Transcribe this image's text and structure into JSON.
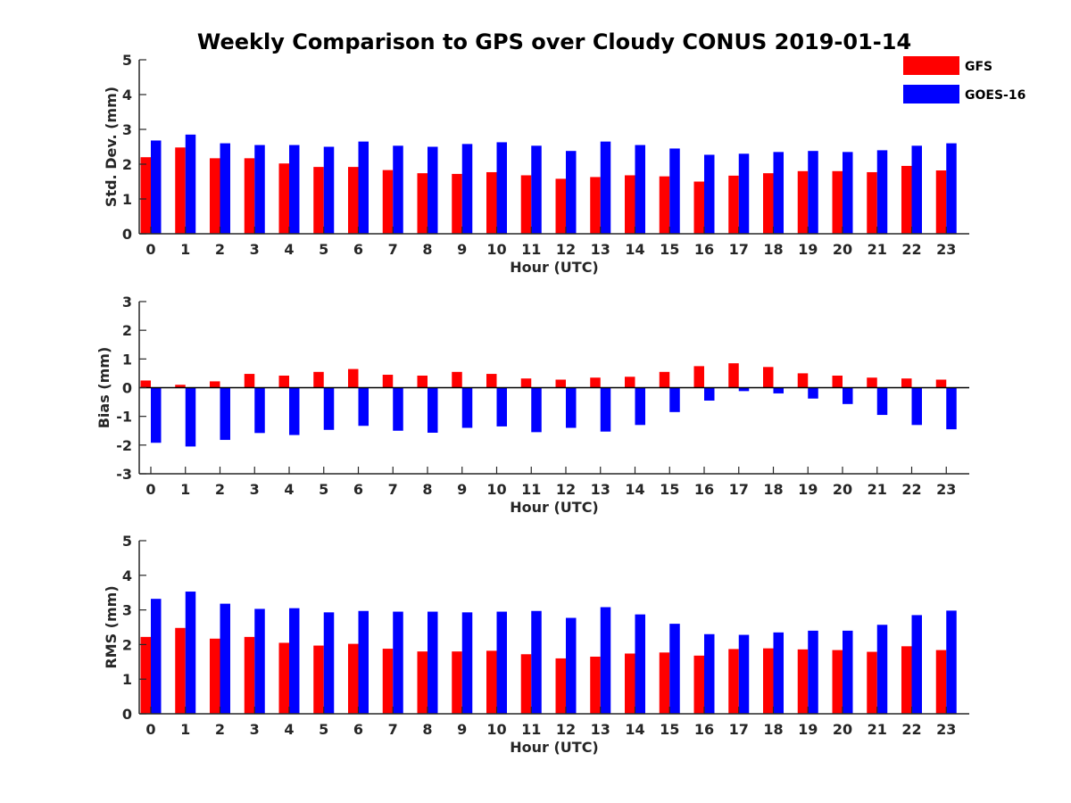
{
  "chart_data": {
    "title": "Weekly Comparison to GPS over Cloudy CONUS 2019-01-14",
    "legend": {
      "placement": "top-right",
      "entries": [
        {
          "name": "GFS",
          "color": "#ff0000"
        },
        {
          "name": "GOES-16",
          "color": "#0000ff"
        }
      ]
    },
    "panels": [
      {
        "type": "bar",
        "ylabel": "Std. Dev. (mm)",
        "xlabel": "Hour (UTC)",
        "ylim": [
          0,
          5
        ],
        "yticks": [
          0,
          1,
          2,
          3,
          4,
          5
        ],
        "categories": [
          "0",
          "1",
          "2",
          "3",
          "4",
          "5",
          "6",
          "7",
          "8",
          "9",
          "10",
          "11",
          "12",
          "13",
          "14",
          "15",
          "16",
          "17",
          "18",
          "19",
          "20",
          "21",
          "22",
          "23"
        ],
        "series": [
          {
            "name": "GFS",
            "color": "#ff0000",
            "values": [
              2.2,
              2.48,
              2.17,
              2.17,
              2.02,
              1.92,
              1.92,
              1.83,
              1.74,
              1.72,
              1.77,
              1.68,
              1.58,
              1.63,
              1.68,
              1.65,
              1.5,
              1.67,
              1.74,
              1.8,
              1.8,
              1.77,
              1.95,
              1.82
            ]
          },
          {
            "name": "GOES-16",
            "color": "#0000ff",
            "values": [
              2.68,
              2.85,
              2.6,
              2.55,
              2.55,
              2.5,
              2.65,
              2.53,
              2.5,
              2.58,
              2.63,
              2.53,
              2.38,
              2.65,
              2.55,
              2.45,
              2.27,
              2.3,
              2.35,
              2.38,
              2.35,
              2.4,
              2.53,
              2.6
            ]
          }
        ]
      },
      {
        "type": "bar",
        "ylabel": "Bias (mm)",
        "xlabel": "Hour (UTC)",
        "ylim": [
          -3,
          3
        ],
        "yticks": [
          -3,
          -2,
          -1,
          0,
          1,
          2,
          3
        ],
        "categories": [
          "0",
          "1",
          "2",
          "3",
          "4",
          "5",
          "6",
          "7",
          "8",
          "9",
          "10",
          "11",
          "12",
          "13",
          "14",
          "15",
          "16",
          "17",
          "18",
          "19",
          "20",
          "21",
          "22",
          "23"
        ],
        "series": [
          {
            "name": "GFS",
            "color": "#ff0000",
            "values": [
              0.25,
              0.1,
              0.22,
              0.48,
              0.42,
              0.55,
              0.65,
              0.45,
              0.42,
              0.55,
              0.48,
              0.32,
              0.28,
              0.35,
              0.38,
              0.55,
              0.75,
              0.85,
              0.72,
              0.5,
              0.42,
              0.35,
              0.32,
              0.28
            ]
          },
          {
            "name": "GOES-16",
            "color": "#0000ff",
            "values": [
              -1.92,
              -2.05,
              -1.82,
              -1.58,
              -1.65,
              -1.47,
              -1.33,
              -1.5,
              -1.57,
              -1.4,
              -1.35,
              -1.55,
              -1.4,
              -1.53,
              -1.3,
              -0.85,
              -0.45,
              -0.12,
              -0.2,
              -0.38,
              -0.57,
              -0.95,
              -1.3,
              -1.45
            ]
          }
        ]
      },
      {
        "type": "bar",
        "ylabel": "RMS (mm)",
        "xlabel": "Hour (UTC)",
        "ylim": [
          0,
          5
        ],
        "yticks": [
          0,
          1,
          2,
          3,
          4,
          5
        ],
        "categories": [
          "0",
          "1",
          "2",
          "3",
          "4",
          "5",
          "6",
          "7",
          "8",
          "9",
          "10",
          "11",
          "12",
          "13",
          "14",
          "15",
          "16",
          "17",
          "18",
          "19",
          "20",
          "21",
          "22",
          "23"
        ],
        "series": [
          {
            "name": "GFS",
            "color": "#ff0000",
            "values": [
              2.22,
              2.48,
              2.17,
              2.22,
              2.05,
              1.97,
              2.02,
              1.88,
              1.8,
              1.8,
              1.82,
              1.72,
              1.6,
              1.65,
              1.74,
              1.77,
              1.68,
              1.87,
              1.89,
              1.86,
              1.84,
              1.79,
              1.95,
              1.84
            ]
          },
          {
            "name": "GOES-16",
            "color": "#0000ff",
            "values": [
              3.32,
              3.53,
              3.18,
              3.03,
              3.05,
              2.93,
              2.97,
              2.95,
              2.95,
              2.93,
              2.95,
              2.97,
              2.77,
              3.08,
              2.87,
              2.6,
              2.3,
              2.28,
              2.35,
              2.4,
              2.4,
              2.57,
              2.85,
              2.98
            ]
          }
        ]
      }
    ]
  }
}
